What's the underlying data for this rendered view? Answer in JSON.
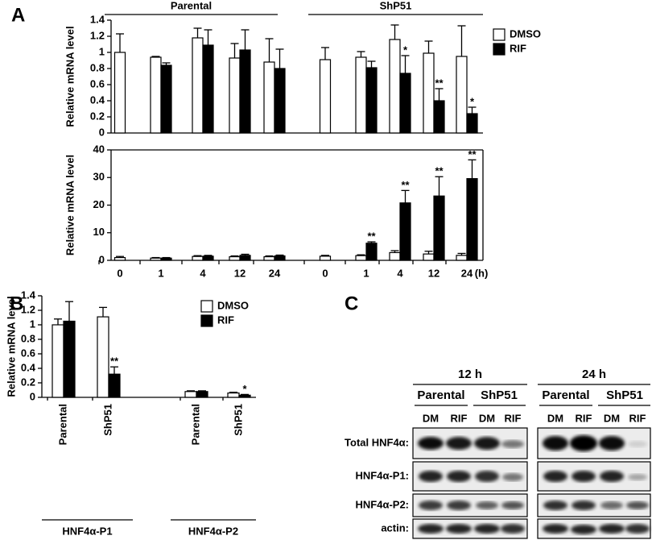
{
  "panel_labels": [
    "A",
    "B",
    "C"
  ],
  "chart_data": [
    {
      "type": "bar",
      "y_label": "Relative mRNA level",
      "groups": [
        "Parental",
        "ShP51"
      ],
      "legend": "upper right",
      "ylim": [
        0,
        1.4
      ],
      "yticks": [
        0,
        0.2,
        0.4,
        0.6,
        0.8,
        1,
        1.2,
        1.4
      ],
      "series": [
        {
          "name": "DMSO",
          "color": "#ffffff",
          "values": [
            1.0,
            0.94,
            1.18,
            0.93,
            0.88,
            0.91,
            0.94,
            1.16,
            0.99,
            0.95
          ],
          "errors": [
            0.23,
            0.01,
            0.12,
            0.18,
            0.29,
            0.15,
            0.07,
            0.18,
            0.15,
            0.38
          ],
          "annotations": [
            null,
            null,
            null,
            null,
            null,
            null,
            null,
            null,
            null,
            null
          ]
        },
        {
          "name": "RIF",
          "color": "#000000",
          "values": [
            null,
            0.84,
            1.09,
            1.03,
            0.8,
            null,
            0.81,
            0.74,
            0.4,
            0.24
          ],
          "errors": [
            null,
            0.03,
            0.19,
            0.25,
            0.24,
            null,
            0.08,
            0.22,
            0.15,
            0.08
          ],
          "annotations": [
            null,
            null,
            null,
            null,
            null,
            null,
            null,
            "*",
            "**",
            "*"
          ]
        }
      ]
    },
    {
      "type": "bar",
      "y_label": "Relative mRNA level",
      "categories": [
        "0",
        "1",
        "4",
        "12",
        "24",
        "0",
        "1",
        "4",
        "12",
        "24"
      ],
      "x_unit": "(h)",
      "ylim": [
        0,
        40
      ],
      "yticks": [
        0,
        10,
        20,
        30,
        40
      ],
      "series": [
        {
          "color": "#ffffff",
          "values": [
            1.0,
            0.8,
            1.4,
            1.3,
            1.3,
            1.5,
            1.7,
            2.8,
            2.3,
            1.8
          ],
          "errors": [
            0.4,
            0.2,
            0.3,
            0.3,
            0.3,
            0.3,
            0.3,
            0.7,
            1.0,
            0.7
          ],
          "annotations": [
            null,
            null,
            null,
            null,
            null,
            null,
            null,
            null,
            null,
            null
          ]
        },
        {
          "color": "#000000",
          "values": [
            null,
            0.8,
            1.5,
            1.8,
            1.6,
            null,
            6.2,
            20.8,
            23.3,
            29.6
          ],
          "errors": [
            null,
            0.2,
            0.3,
            0.4,
            0.3,
            null,
            0.5,
            4.5,
            7.0,
            6.8
          ],
          "annotations": [
            null,
            null,
            null,
            null,
            null,
            null,
            "**",
            "**",
            "**",
            "**"
          ]
        }
      ]
    },
    {
      "type": "bar",
      "y_label": "Relative mRNA level",
      "categories": [
        "Parental",
        "ShP51",
        "Parental",
        "ShP51"
      ],
      "groups": [
        "HNF4α-P1",
        "HNF4α-P2"
      ],
      "legend": "upper right",
      "ylim": [
        0,
        1.4
      ],
      "yticks": [
        0,
        0.2,
        0.4,
        0.6,
        0.8,
        1,
        1.2,
        1.4
      ],
      "series": [
        {
          "name": "DMSO",
          "color": "#ffffff",
          "values": [
            1.0,
            1.11,
            0.08,
            0.06
          ],
          "errors": [
            0.08,
            0.13,
            0.01,
            0.01
          ],
          "annotations": [
            null,
            null,
            null,
            null
          ]
        },
        {
          "name": "RIF",
          "color": "#000000",
          "values": [
            1.05,
            0.32,
            0.08,
            0.03
          ],
          "errors": [
            0.27,
            0.1,
            0.01,
            0.01
          ],
          "annotations": [
            null,
            "**",
            null,
            "*"
          ]
        }
      ]
    }
  ],
  "blot": {
    "times": [
      "12 h",
      "24 h"
    ],
    "groups": [
      "Parental",
      "ShP51"
    ],
    "lanes": [
      "DM",
      "RIF"
    ],
    "rows": [
      "Total HNF4α:",
      "HNF4α-P1:",
      "HNF4α-P2:",
      "actin:"
    ]
  }
}
